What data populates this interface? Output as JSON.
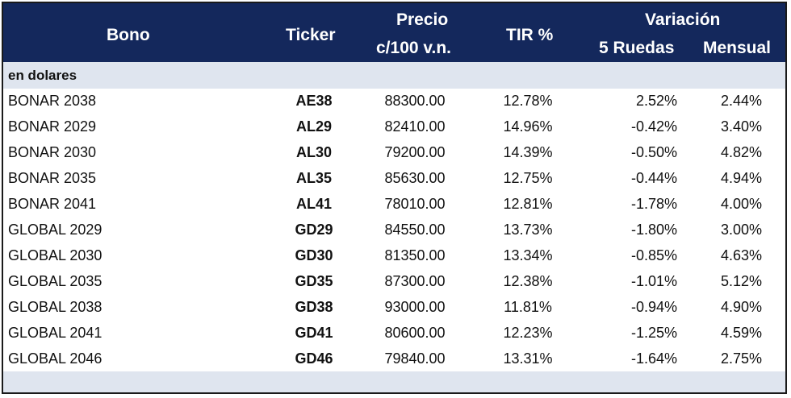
{
  "header": {
    "bono": "Bono",
    "ticker": "Ticker",
    "precio_line1": "Precio",
    "precio_line2": "c/100 v.n.",
    "tir": "TIR %",
    "variacion": "Variación",
    "ruedas": "5 Ruedas",
    "mensual": "Mensual"
  },
  "section": {
    "label": "en dolares"
  },
  "rows": [
    {
      "bono": "BONAR 2038",
      "ticker": "AE38",
      "precio": "88300.00",
      "tir": "12.78%",
      "ruedas": "2.52%",
      "mensual": "2.44%"
    },
    {
      "bono": "BONAR 2029",
      "ticker": "AL29",
      "precio": "82410.00",
      "tir": "14.96%",
      "ruedas": "-0.42%",
      "mensual": "3.40%"
    },
    {
      "bono": "BONAR 2030",
      "ticker": "AL30",
      "precio": "79200.00",
      "tir": "14.39%",
      "ruedas": "-0.50%",
      "mensual": "4.82%"
    },
    {
      "bono": "BONAR 2035",
      "ticker": "AL35",
      "precio": "85630.00",
      "tir": "12.75%",
      "ruedas": "-0.44%",
      "mensual": "4.94%"
    },
    {
      "bono": "BONAR 2041",
      "ticker": "AL41",
      "precio": "78010.00",
      "tir": "12.81%",
      "ruedas": "-1.78%",
      "mensual": "4.00%"
    },
    {
      "bono": "GLOBAL 2029",
      "ticker": "GD29",
      "precio": "84550.00",
      "tir": "13.73%",
      "ruedas": "-1.80%",
      "mensual": "3.00%"
    },
    {
      "bono": "GLOBAL 2030",
      "ticker": "GD30",
      "precio": "81350.00",
      "tir": "13.34%",
      "ruedas": "-0.85%",
      "mensual": "4.63%"
    },
    {
      "bono": "GLOBAL 2035",
      "ticker": "GD35",
      "precio": "87300.00",
      "tir": "12.38%",
      "ruedas": "-1.01%",
      "mensual": "5.12%"
    },
    {
      "bono": "GLOBAL 2038",
      "ticker": "GD38",
      "precio": "93000.00",
      "tir": "11.81%",
      "ruedas": "-0.94%",
      "mensual": "4.90%"
    },
    {
      "bono": "GLOBAL 2041",
      "ticker": "GD41",
      "precio": "80600.00",
      "tir": "12.23%",
      "ruedas": "-1.25%",
      "mensual": "4.59%"
    },
    {
      "bono": "GLOBAL 2046",
      "ticker": "GD46",
      "precio": "79840.00",
      "tir": "13.31%",
      "ruedas": "-1.64%",
      "mensual": "2.75%"
    }
  ],
  "colors": {
    "header_bg": "#14285c",
    "section_bg": "#dfe5ef"
  }
}
